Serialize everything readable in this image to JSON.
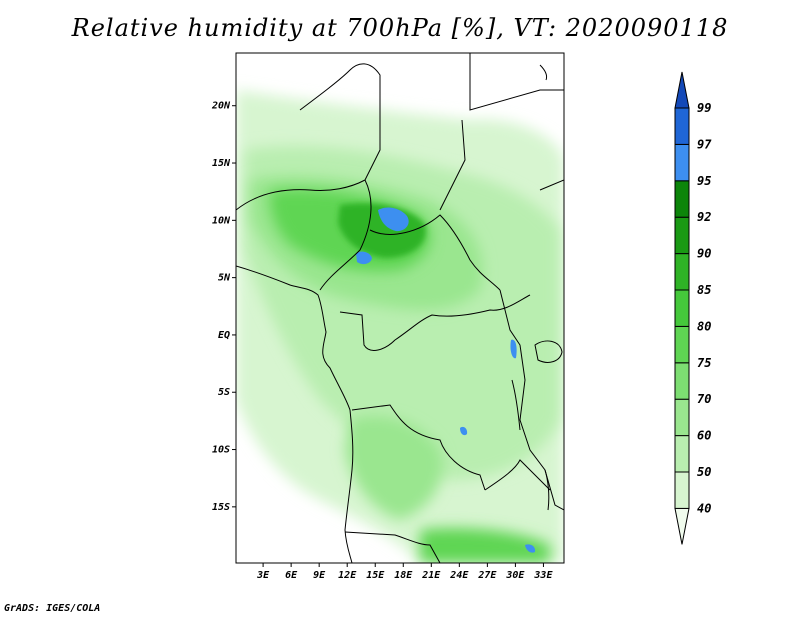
{
  "title": "Relative humidity at 700hPa [%], VT: 2020090118",
  "credit": "GrADS: IGES/COLA",
  "map": {
    "region": "Central Africa",
    "lat_ticks": [
      {
        "label": "20N",
        "lat": 20
      },
      {
        "label": "15N",
        "lat": 15
      },
      {
        "label": "10N",
        "lat": 10
      },
      {
        "label": "5N",
        "lat": 5
      },
      {
        "label": "EQ",
        "lat": 0
      },
      {
        "label": "5S",
        "lat": -5
      },
      {
        "label": "10S",
        "lat": -10
      },
      {
        "label": "15S",
        "lat": -15
      }
    ],
    "lon_ticks": [
      {
        "label": "3E",
        "lon": 3
      },
      {
        "label": "6E",
        "lon": 6
      },
      {
        "label": "9E",
        "lon": 9
      },
      {
        "label": "12E",
        "lon": 12
      },
      {
        "label": "15E",
        "lon": 15
      },
      {
        "label": "18E",
        "lon": 18
      },
      {
        "label": "21E",
        "lon": 21
      },
      {
        "label": "24E",
        "lon": 24
      },
      {
        "label": "27E",
        "lon": 27
      },
      {
        "label": "30E",
        "lon": 30
      },
      {
        "label": "33E",
        "lon": 33
      }
    ],
    "lat_range": [
      -19.9,
      24.6
    ],
    "lon_range": [
      0.1,
      35.2
    ]
  },
  "colorbar": {
    "levels": [
      40,
      50,
      60,
      70,
      75,
      80,
      85,
      90,
      92,
      95,
      97,
      99
    ],
    "colors": [
      "#f0fbed",
      "#d7f5d0",
      "#b9eeb0",
      "#9ae68f",
      "#7dde72",
      "#5fd553",
      "#45c83b",
      "#2fb326",
      "#1a9a14",
      "#0c850a",
      "#3d8ff0",
      "#1f66d6",
      "#1349b8"
    ],
    "level_labels": [
      "40",
      "50",
      "60",
      "70",
      "75",
      "80",
      "85",
      "90",
      "92",
      "95",
      "97",
      "99"
    ]
  },
  "colors": {
    "border": "#000000",
    "background": "#ffffff"
  }
}
